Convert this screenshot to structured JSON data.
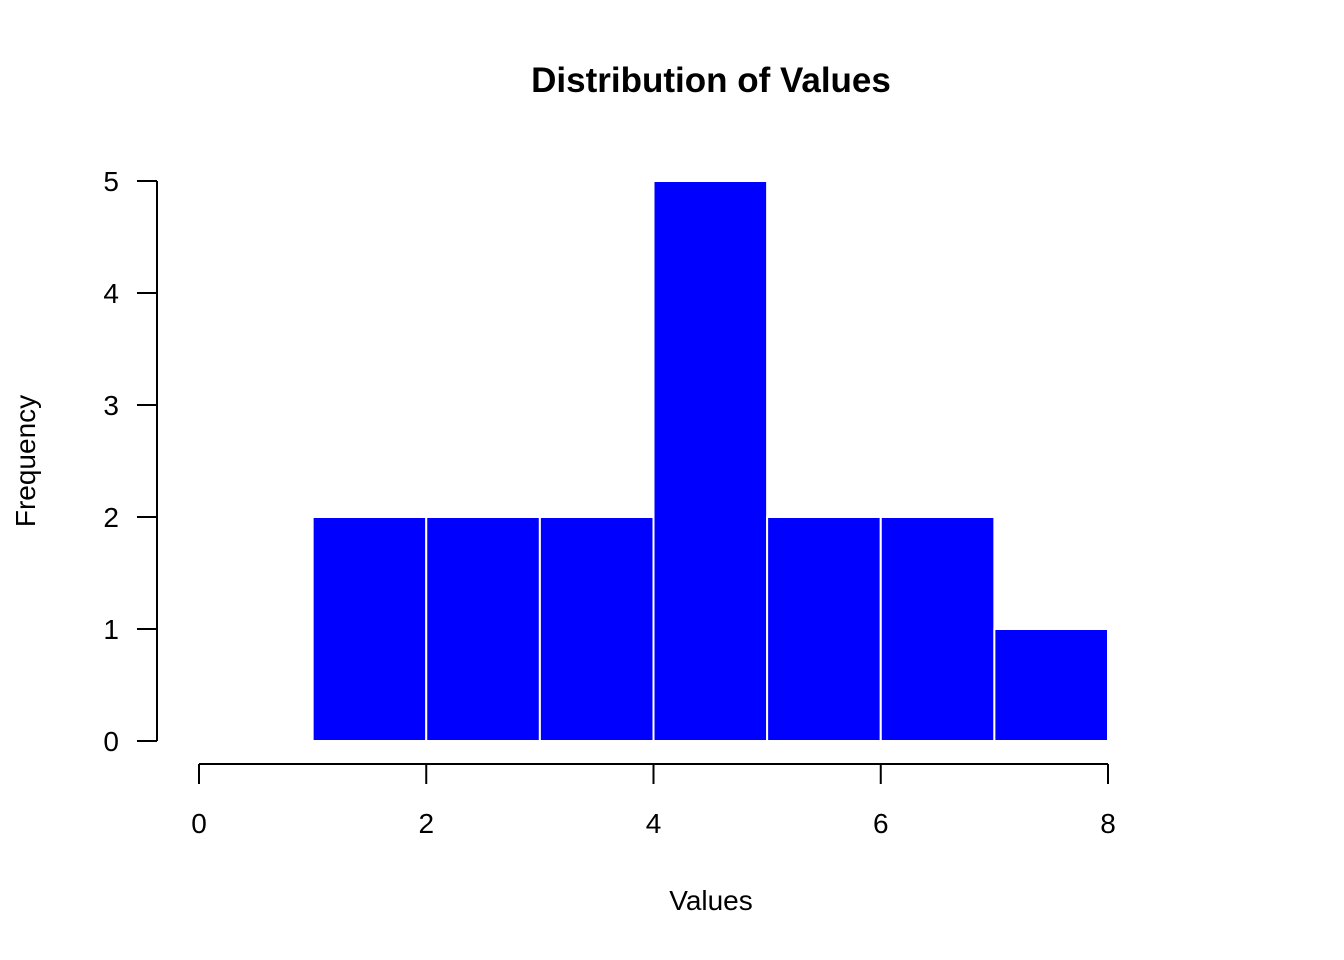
{
  "chart_data": {
    "type": "histogram",
    "title": "Distribution of Values",
    "xlabel": "Values",
    "ylabel": "Frequency",
    "bins": [
      {
        "start": 1,
        "end": 2,
        "count": 2
      },
      {
        "start": 2,
        "end": 3,
        "count": 2
      },
      {
        "start": 3,
        "end": 4,
        "count": 2
      },
      {
        "start": 4,
        "end": 5,
        "count": 5
      },
      {
        "start": 5,
        "end": 6,
        "count": 2
      },
      {
        "start": 6,
        "end": 7,
        "count": 2
      },
      {
        "start": 7,
        "end": 8,
        "count": 1
      }
    ],
    "xlim": [
      0,
      8
    ],
    "ylim": [
      0,
      5
    ],
    "x_ticks": [
      0,
      2,
      4,
      6,
      8
    ],
    "y_ticks": [
      0,
      1,
      2,
      3,
      4,
      5
    ],
    "grid": false,
    "legend": "none",
    "bar_color": "#0000ff",
    "bar_border_color": "#ffffff"
  }
}
